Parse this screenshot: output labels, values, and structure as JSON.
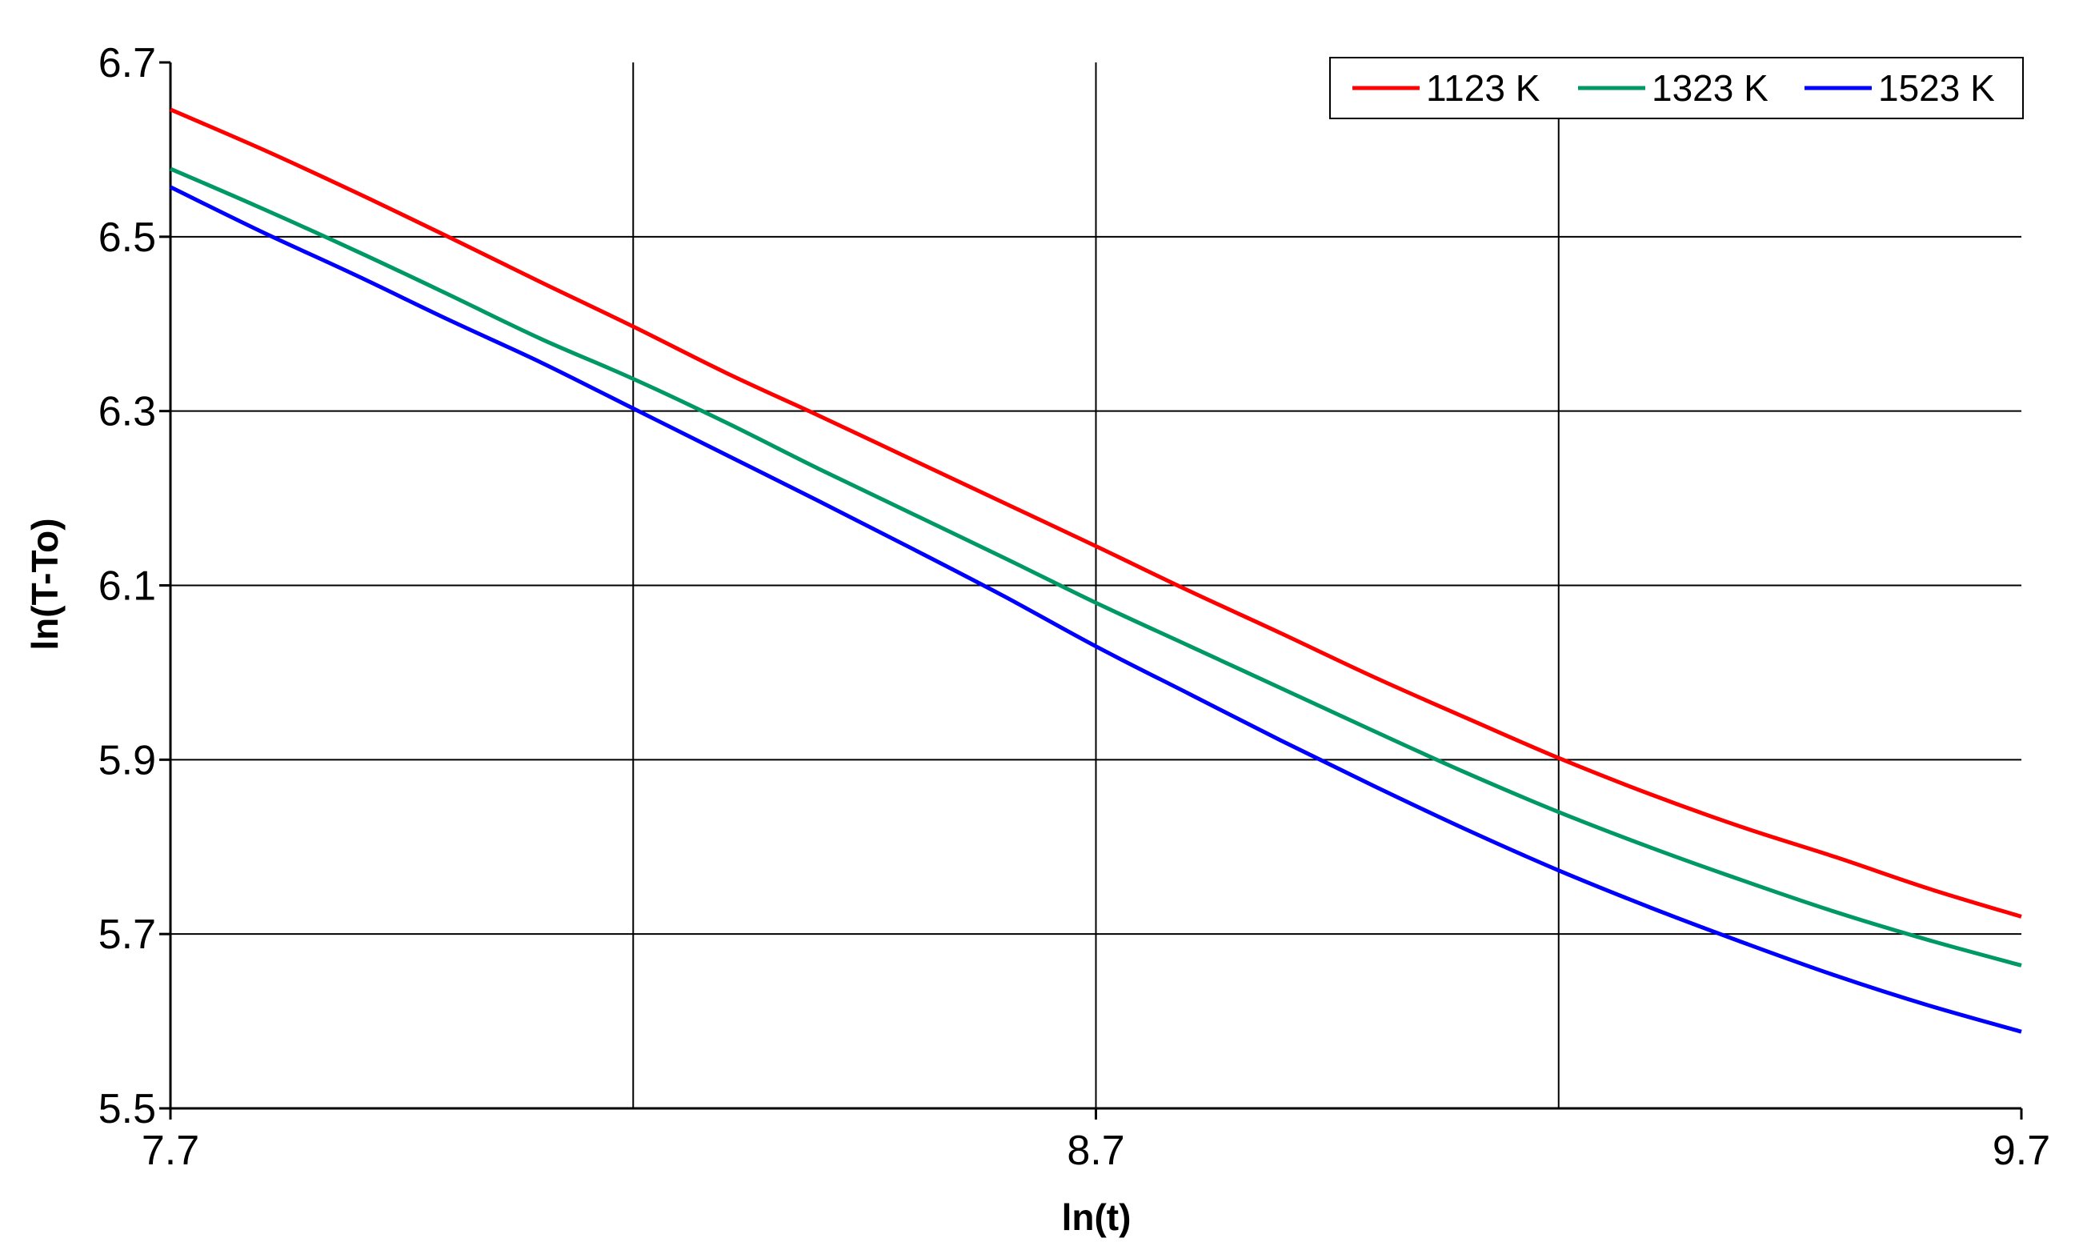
{
  "chart_data": {
    "type": "line",
    "title": "",
    "xlabel": "ln(t)",
    "ylabel": "ln(T-To)",
    "xlim": [
      7.7,
      9.7
    ],
    "ylim": [
      5.5,
      6.7
    ],
    "x_ticks": [
      "7.7",
      "8.7",
      "9.7"
    ],
    "y_ticks": [
      "5.5",
      "5.7",
      "5.9",
      "6.1",
      "6.3",
      "6.5",
      "6.7"
    ],
    "x_grid": [
      8.2,
      8.7,
      9.2
    ],
    "y_grid": [
      5.7,
      5.9,
      6.1,
      6.3,
      6.5
    ],
    "grid": true,
    "legend_position": "top-right",
    "x": [
      7.7,
      7.8,
      7.9,
      8.0,
      8.1,
      8.2,
      8.3,
      8.4,
      8.5,
      8.6,
      8.7,
      8.8,
      8.9,
      9.0,
      9.1,
      9.2,
      9.3,
      9.4,
      9.5,
      9.6,
      9.7
    ],
    "series": [
      {
        "name": "1123 K",
        "color": "#ff0000",
        "values": [
          6.646,
          6.6,
          6.551,
          6.5,
          6.448,
          6.397,
          6.344,
          6.295,
          6.245,
          6.195,
          6.145,
          6.094,
          6.045,
          5.995,
          5.948,
          5.902,
          5.86,
          5.822,
          5.788,
          5.752,
          5.72
        ]
      },
      {
        "name": "1323 K",
        "color": "#009966",
        "values": [
          6.578,
          6.532,
          6.484,
          6.434,
          6.383,
          6.337,
          6.287,
          6.234,
          6.183,
          6.132,
          6.08,
          6.031,
          5.982,
          5.933,
          5.885,
          5.84,
          5.799,
          5.761,
          5.725,
          5.693,
          5.664
        ]
      },
      {
        "name": "1523 K",
        "color": "#0000ff",
        "values": [
          6.557,
          6.505,
          6.456,
          6.405,
          6.356,
          6.303,
          6.25,
          6.197,
          6.143,
          6.088,
          6.03,
          5.976,
          5.922,
          5.87,
          5.82,
          5.773,
          5.73,
          5.69,
          5.652,
          5.618,
          5.588
        ]
      }
    ]
  }
}
